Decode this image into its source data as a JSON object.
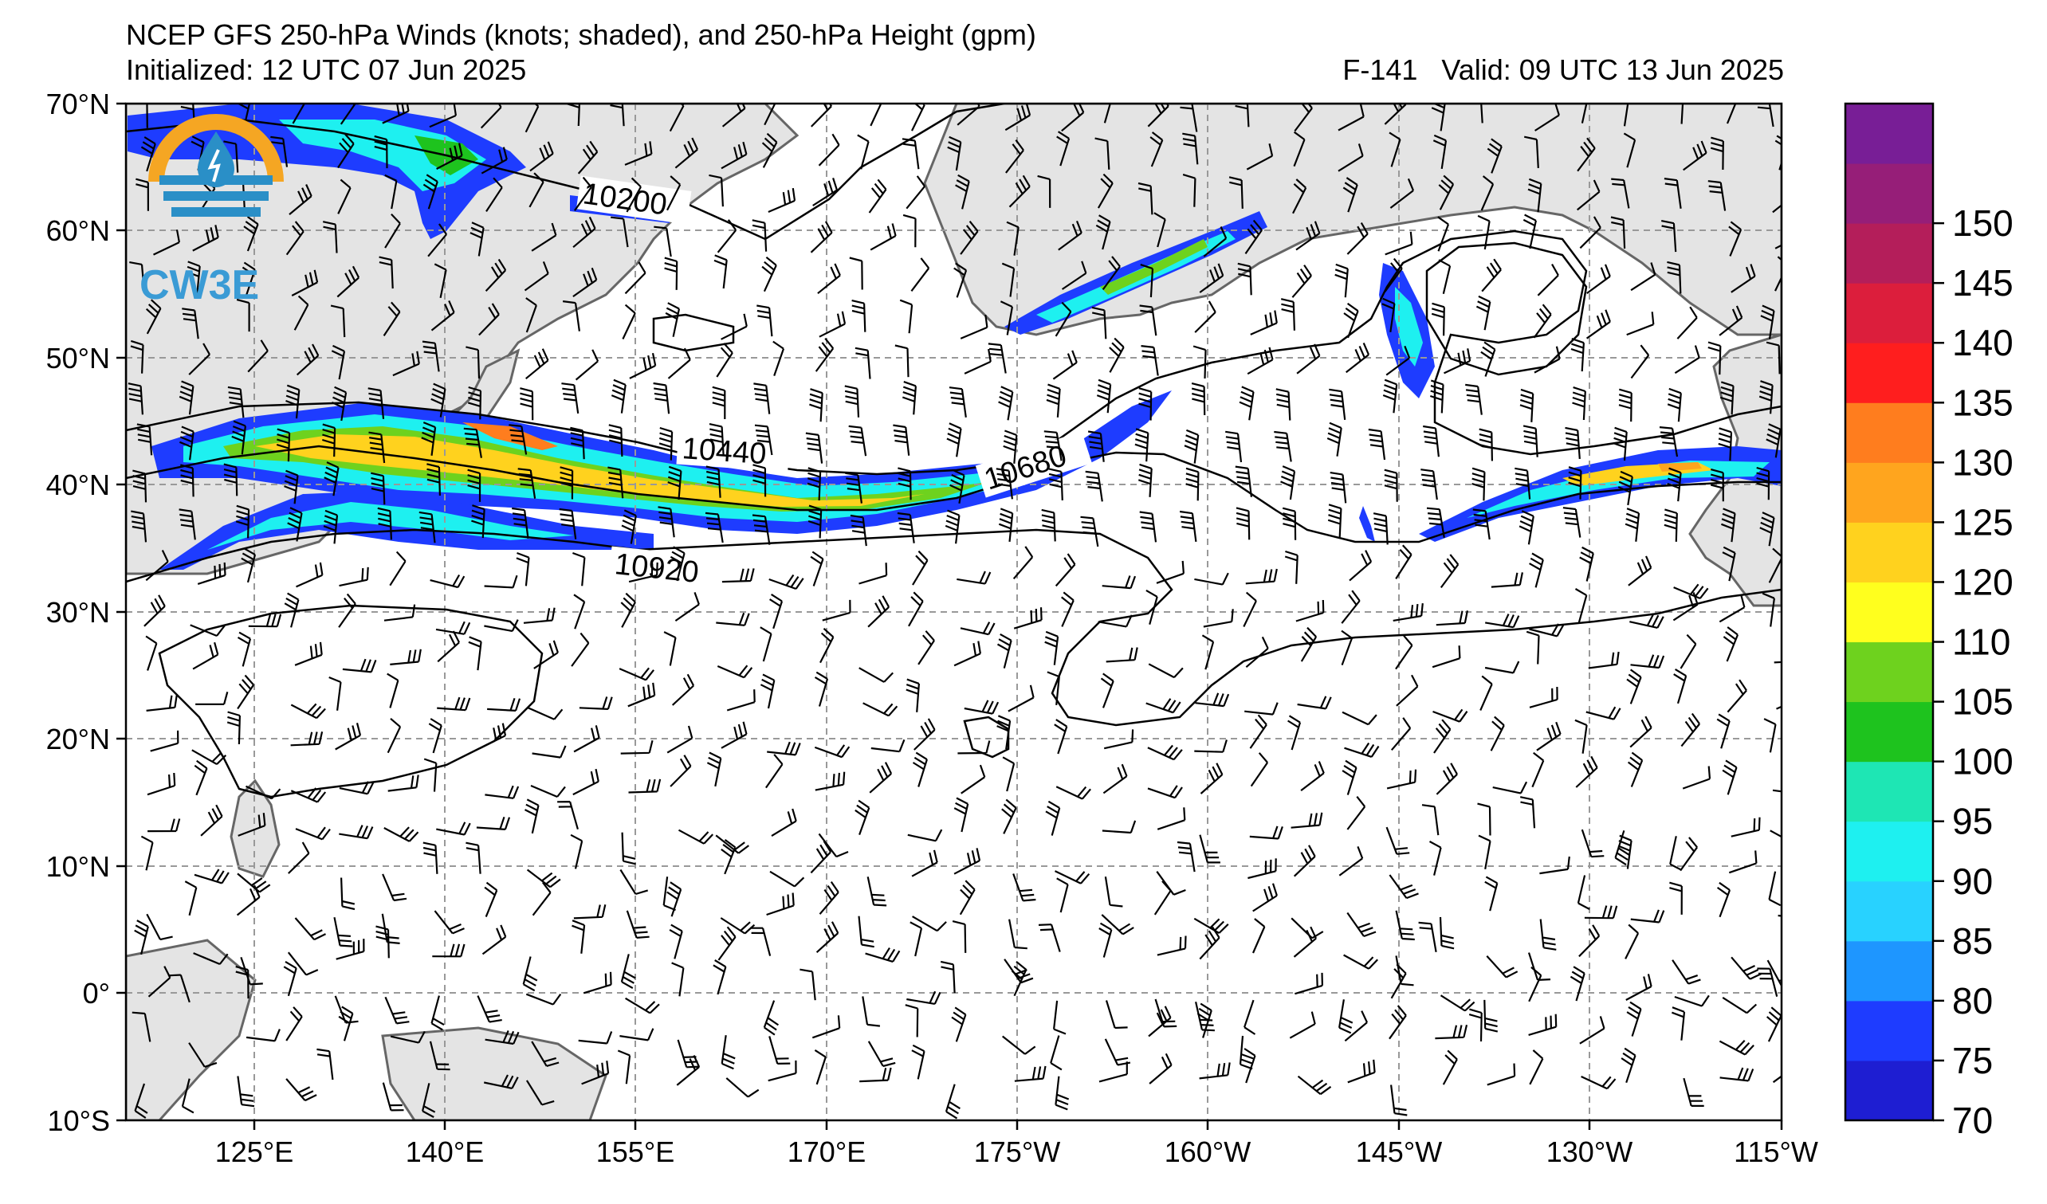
{
  "title": {
    "line1": "NCEP GFS 250-hPa Winds (knots; shaded), and 250-hPa Height (gpm)",
    "initialized": "Initialized: 12 UTC 07 Jun 2025",
    "forecast_hour": "F-141",
    "valid": "Valid: 09 UTC 13 Jun 2025"
  },
  "logo": {
    "text": "CW3E",
    "colors": {
      "ring": "#f5a623",
      "drop": "#2a8fc7",
      "waves": "#2a8fc7"
    }
  },
  "map": {
    "lat_ticks": [
      "70°N",
      "60°N",
      "50°N",
      "40°N",
      "30°N",
      "20°N",
      "10°N",
      "0°",
      "10°S"
    ],
    "lon_ticks": [
      "125°E",
      "140°E",
      "155°E",
      "170°E",
      "175°W",
      "160°W",
      "145°W",
      "130°W",
      "115°W"
    ],
    "land_color": "#e4e4e4",
    "coast_color": "#666666",
    "gridline_color": "#999999"
  },
  "contours": [
    {
      "label": "10200"
    },
    {
      "label": "10440"
    },
    {
      "label": "10680"
    },
    {
      "label": "10920"
    }
  ],
  "colorbar": {
    "ticks": [
      "70",
      "75",
      "80",
      "85",
      "90",
      "95",
      "100",
      "105",
      "110",
      "120",
      "125",
      "130",
      "135",
      "140",
      "145",
      "150"
    ],
    "colors": [
      "#1e1ed2",
      "#1e3cff",
      "#1e96ff",
      "#28d2ff",
      "#1ef0f0",
      "#1ee6b4",
      "#1ec31e",
      "#6ed21e",
      "#ffff1e",
      "#ffd21e",
      "#ffa51e",
      "#ff7d1e",
      "#ff1e1e",
      "#dc1e3c",
      "#b41e5a",
      "#961e78",
      "#781e96"
    ]
  }
}
